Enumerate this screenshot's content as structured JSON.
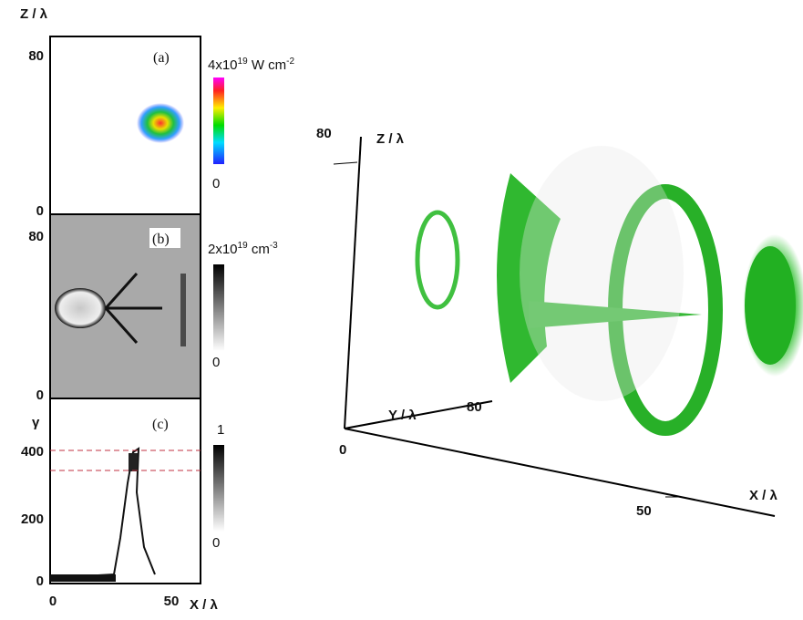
{
  "panels": [
    {
      "y_axis_label": "Z / λ",
      "label": "(a)",
      "yticks": [
        "80",
        "0"
      ],
      "colorbar": {
        "max": {
          "base": "4x10",
          "exp": "19",
          "unit": " W cm",
          "unit_exp": "-2"
        },
        "min": "0"
      }
    },
    {
      "label": "(b)",
      "yticks": [
        "80",
        "0"
      ],
      "colorbar": {
        "max": {
          "base": "2x10",
          "exp": "19",
          "unit": " cm",
          "unit_exp": "-3"
        },
        "min": "0"
      }
    },
    {
      "y_axis_label": "γ",
      "label": "(c)",
      "yticks": [
        "400",
        "200",
        "0"
      ],
      "xticks": [
        "0",
        "50"
      ],
      "x_axis_label": "X / λ",
      "colorbar": {
        "max": "1",
        "min": "0"
      }
    }
  ],
  "view3d": {
    "z_tick": "80",
    "z_label": "Z / λ",
    "y_label": "Y / λ",
    "y_tick": "80",
    "origin": "0",
    "x_tick": "50",
    "x_label": "X / λ"
  }
}
